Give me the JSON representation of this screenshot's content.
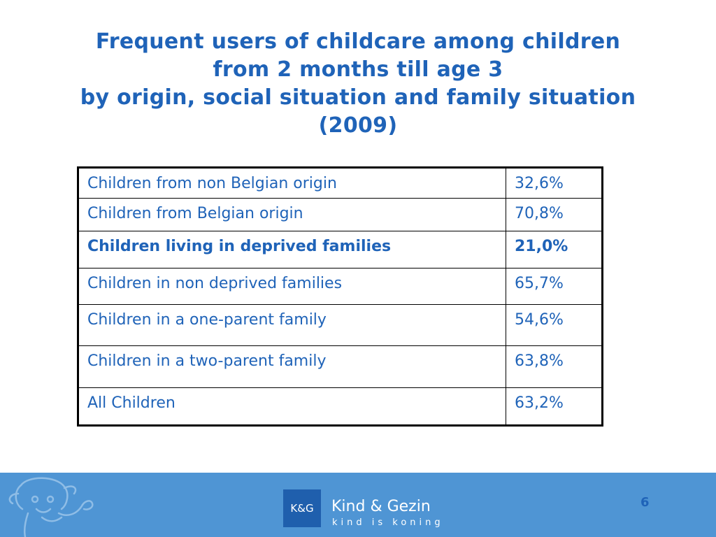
{
  "title": {
    "line1": "Frequent users of childcare among children",
    "line2": "from 2 months till age 3",
    "line3": "by origin, social situation and family situation",
    "line4": "(2009)"
  },
  "table": {
    "rows": [
      {
        "label": "Children from non Belgian origin",
        "value": "32,6%"
      },
      {
        "label": "Children from Belgian origin",
        "value": "70,8%"
      },
      {
        "label": "Children living in deprived families",
        "value": "21,0%"
      },
      {
        "label": "Children in non deprived families",
        "value": "65,7%"
      },
      {
        "label": "Children in a one-parent family",
        "value": "54,6%"
      },
      {
        "label": "Children in a two-parent family",
        "value": "63,8%"
      },
      {
        "label": "All Children",
        "value": "63,2%"
      }
    ]
  },
  "footer": {
    "logo_text": "K&G",
    "brand_name": "Kind & Gezin",
    "brand_tagline": "kind is koning",
    "page_number": "6"
  },
  "colors": {
    "title": "#1f63b8",
    "footer_bg": "#4f95d4",
    "logo_bg": "#1f5fad"
  }
}
